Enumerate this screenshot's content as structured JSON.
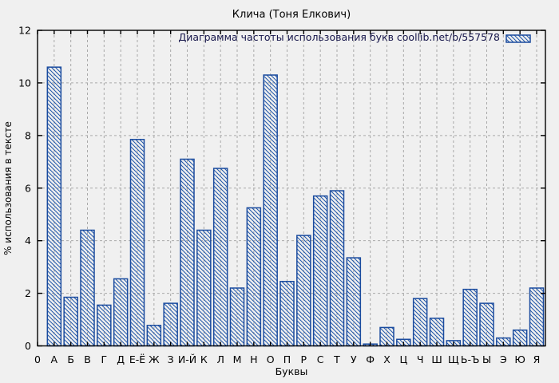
{
  "title": "Клича (Тоня Елкович)",
  "legend": {
    "label": "Диаграмма частоты использования букв  coollib.net/b/557578",
    "swatch": "blue-diagonal-hatch"
  },
  "axes": {
    "y_label": "% использования в тексте",
    "x_label": "Буквы",
    "y_ticks": [
      0,
      2,
      4,
      6,
      8,
      10,
      12
    ],
    "y_min": 0,
    "y_max": 12
  },
  "colors": {
    "background": "#f0f0f0",
    "bar_stroke": "#1a4b9e",
    "hatch": "#1f55a8",
    "grid": "#a9a9a9",
    "axis": "#000000",
    "text": "#000000",
    "legend_text": "#15154a"
  },
  "chart_data": {
    "type": "bar",
    "title": "Клича (Тоня Елкович)",
    "legend_label": "Диаграмма частоты использования букв  coollib.net/b/557578",
    "legend_position": "top-right",
    "grid": true,
    "bar_style": "diagonal-hatch",
    "xlabel": "Буквы",
    "ylabel": "% использования в тексте",
    "ylim": [
      0,
      12
    ],
    "categories": [
      "0",
      "А",
      "Б",
      "В",
      "Г",
      "Д",
      "Е-Ё",
      "Ж",
      "З",
      "И-Й",
      "К",
      "Л",
      "М",
      "Н",
      "О",
      "П",
      "Р",
      "С",
      "Т",
      "У",
      "Ф",
      "Х",
      "Ц",
      "Ч",
      "Ш",
      "Щ",
      "Ь-Ъ",
      "Ы",
      "Э",
      "Ю",
      "Я"
    ],
    "values": [
      0,
      10.6,
      1.85,
      4.4,
      1.55,
      2.55,
      7.85,
      0.78,
      1.62,
      7.1,
      4.4,
      6.75,
      2.2,
      5.25,
      10.3,
      2.45,
      4.2,
      5.7,
      5.9,
      3.35,
      0.07,
      0.7,
      0.25,
      1.8,
      1.05,
      0.2,
      2.15,
      1.62,
      0.3,
      0.6,
      2.2
    ]
  }
}
